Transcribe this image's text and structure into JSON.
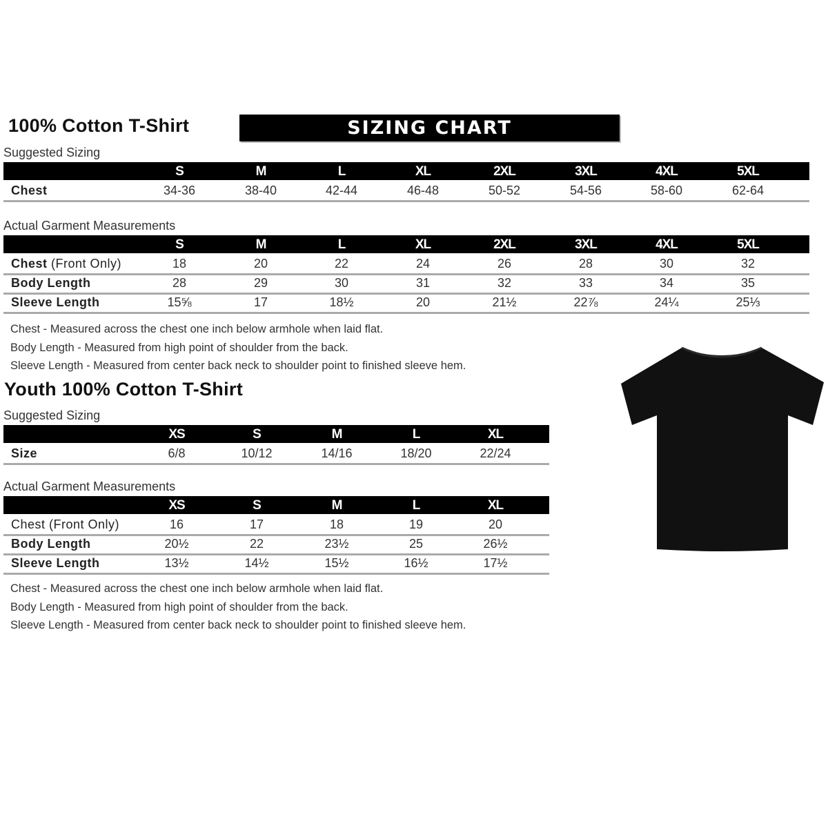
{
  "adult": {
    "title": "100% Cotton T-Shirt",
    "banner": "SIZING CHART",
    "suggested_label": "Suggested Sizing",
    "sizes": [
      "S",
      "M",
      "L",
      "XL",
      "2XL",
      "3XL",
      "4XL",
      "5XL"
    ],
    "suggested_rows": [
      {
        "label": "Chest",
        "values": [
          "34-36",
          "38-40",
          "42-44",
          "46-48",
          "50-52",
          "54-56",
          "58-60",
          "62-64"
        ]
      }
    ],
    "actual_label": "Actual Garment Measurements",
    "actual_rows": [
      {
        "label": "Chest",
        "label_suffix": " (Front Only)",
        "values": [
          "18",
          "20",
          "22",
          "24",
          "26",
          "28",
          "30",
          "32"
        ]
      },
      {
        "label": "Body Length",
        "values": [
          "28",
          "29",
          "30",
          "31",
          "32",
          "33",
          "34",
          "35"
        ]
      },
      {
        "label": "Sleeve Length",
        "values": [
          "15⅝",
          "17",
          "18½",
          "20",
          "21½",
          "22⅞",
          "24¼",
          "25⅓"
        ]
      }
    ],
    "notes": [
      "Chest - Measured across the chest one inch below armhole when laid flat.",
      "Body Length - Measured from high point of shoulder from the back.",
      "Sleeve Length - Measured from center back neck to shoulder point to finished sleeve hem."
    ]
  },
  "youth": {
    "title": "Youth 100% Cotton T-Shirt",
    "suggested_label": "Suggested Sizing",
    "sizes": [
      "XS",
      "S",
      "M",
      "L",
      "XL"
    ],
    "suggested_rows": [
      {
        "label": "Size",
        "values": [
          "6/8",
          "10/12",
          "14/16",
          "18/20",
          "22/24"
        ]
      }
    ],
    "actual_label": "Actual Garment Measurements",
    "actual_rows": [
      {
        "label": "Chest (Front Only)",
        "values": [
          "16",
          "17",
          "18",
          "19",
          "20"
        ]
      },
      {
        "label": "Body Length",
        "values": [
          "20½",
          "22",
          "23½",
          "25",
          "26½"
        ]
      },
      {
        "label": "Sleeve Length",
        "values": [
          "13½",
          "14½",
          "15½",
          "16½",
          "17½"
        ]
      }
    ],
    "notes": [
      "Chest - Measured across the chest one inch below armhole when laid flat.",
      "Body Length - Measured from high point of shoulder from the back.",
      "Sleeve Length - Measured from center back neck to shoulder point to finished sleeve hem."
    ]
  },
  "image": {
    "icon": "black-tshirt-icon",
    "color": "#111111"
  }
}
